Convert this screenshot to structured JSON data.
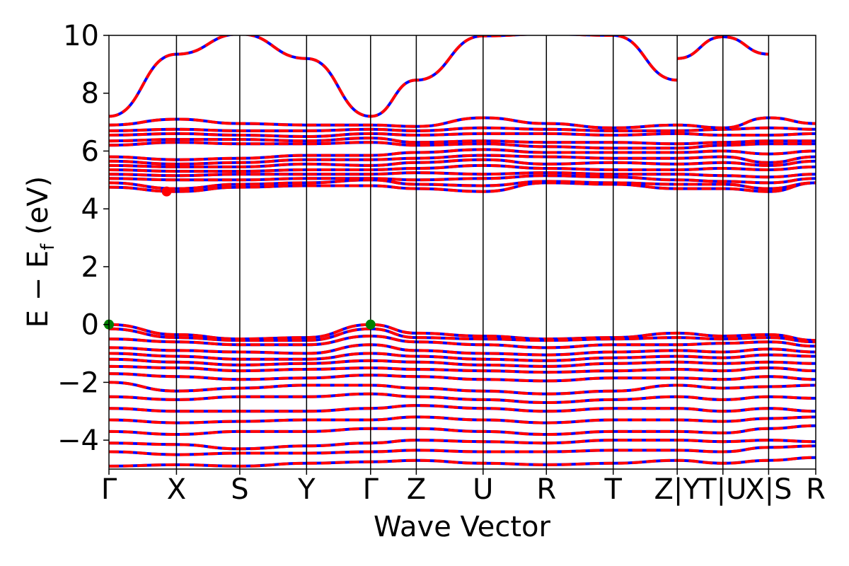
{
  "chart_data": {
    "type": "line",
    "title": "",
    "xlabel": "Wave Vector",
    "ylabel_main": "E − E",
    "ylabel_sub": "f",
    "ylabel_unit": " (eV)",
    "ylim": [
      -5,
      10
    ],
    "yticks": [
      {
        "value": -4,
        "label": "−4"
      },
      {
        "value": -2,
        "label": "−2"
      },
      {
        "value": 0,
        "label": "0"
      },
      {
        "value": 2,
        "label": "2"
      },
      {
        "value": 4,
        "label": "4"
      },
      {
        "value": 6,
        "label": "6"
      },
      {
        "value": 8,
        "label": "8"
      },
      {
        "value": 10,
        "label": "10"
      }
    ],
    "xlim": [
      0,
      10.05
    ],
    "kpoints": [
      {
        "label": "Γ",
        "x": 0.0
      },
      {
        "label": "X",
        "x": 0.96
      },
      {
        "label": "S",
        "x": 1.86
      },
      {
        "label": "Y",
        "x": 2.81
      },
      {
        "label": "Γ",
        "x": 3.72
      },
      {
        "label": "Z",
        "x": 4.37
      },
      {
        "label": "U",
        "x": 5.32
      },
      {
        "label": "R",
        "x": 6.22
      },
      {
        "label": "T",
        "x": 7.17
      },
      {
        "label": "Z|Y",
        "x": 8.08
      },
      {
        "label": "T|U",
        "x": 8.73
      },
      {
        "label": "X|S",
        "x": 9.38
      },
      {
        "label": "R",
        "x": 10.05
      }
    ],
    "colors": {
      "spin_up": "#ff0000",
      "spin_down": "#0000ff",
      "cbm": "#ff0000",
      "vbm": "#008000"
    },
    "cbm": {
      "x": 0.82,
      "y": 4.6
    },
    "vbm": [
      {
        "x": 0.0,
        "y": 0.0
      },
      {
        "x": 3.72,
        "y": 0.0
      }
    ],
    "band_nodes": {
      "x": [
        0.0,
        0.96,
        1.86,
        2.81,
        3.72,
        4.37,
        5.32,
        6.22,
        7.17,
        8.08,
        8.73,
        9.38,
        10.05
      ],
      "conduction_high": [
        [
          7.2,
          9.35,
          10.05,
          9.2,
          7.2,
          8.45,
          9.98,
          10.05,
          10.0,
          8.45,
          null,
          null,
          null
        ],
        [
          null,
          null,
          null,
          null,
          null,
          null,
          null,
          null,
          null,
          9.2,
          9.95,
          9.35,
          null
        ]
      ],
      "conduction": [
        [
          4.75,
          4.6,
          4.75,
          4.8,
          4.8,
          4.7,
          4.6,
          4.9,
          4.85,
          4.7,
          4.7,
          4.6,
          4.9
        ],
        [
          4.9,
          4.7,
          4.85,
          4.9,
          5.0,
          4.85,
          4.8,
          4.95,
          4.9,
          4.85,
          4.85,
          4.7,
          4.9
        ],
        [
          5.05,
          5.0,
          5.0,
          5.05,
          5.05,
          5.0,
          5.05,
          5.15,
          5.1,
          5.0,
          4.95,
          4.9,
          5.05
        ],
        [
          5.2,
          5.15,
          5.2,
          5.2,
          5.2,
          5.25,
          5.2,
          5.25,
          5.2,
          5.2,
          5.15,
          5.1,
          5.2
        ],
        [
          5.35,
          5.3,
          5.3,
          5.35,
          5.35,
          5.4,
          5.5,
          5.4,
          5.35,
          5.35,
          5.4,
          5.35,
          5.45
        ],
        [
          5.5,
          5.45,
          5.45,
          5.55,
          5.5,
          5.6,
          5.7,
          5.55,
          5.6,
          5.55,
          5.6,
          5.5,
          5.65
        ],
        [
          5.65,
          5.55,
          5.6,
          5.7,
          5.7,
          5.75,
          5.85,
          5.8,
          5.75,
          5.75,
          5.8,
          5.6,
          5.8
        ],
        [
          5.8,
          5.7,
          5.75,
          5.85,
          5.85,
          5.95,
          6.05,
          5.95,
          5.95,
          5.95,
          6.0,
          5.9,
          6.0
        ],
        [
          6.2,
          6.3,
          6.25,
          6.25,
          6.3,
          6.2,
          6.25,
          6.15,
          6.1,
          6.1,
          6.2,
          6.25,
          6.25
        ],
        [
          6.35,
          6.4,
          6.4,
          6.35,
          6.45,
          6.3,
          6.35,
          6.3,
          6.3,
          6.25,
          6.3,
          6.35,
          6.35
        ],
        [
          6.55,
          6.6,
          6.55,
          6.5,
          6.6,
          6.55,
          6.6,
          6.6,
          6.55,
          6.6,
          6.55,
          6.55,
          6.6
        ],
        [
          6.7,
          6.75,
          6.7,
          6.7,
          6.75,
          6.7,
          6.8,
          6.75,
          6.7,
          6.7,
          6.75,
          6.8,
          6.75
        ],
        [
          6.9,
          7.1,
          6.95,
          6.9,
          6.9,
          6.85,
          7.15,
          6.95,
          6.8,
          6.9,
          6.8,
          7.15,
          6.95
        ]
      ],
      "valence": [
        [
          0.0,
          -0.35,
          -0.5,
          -0.45,
          0.0,
          -0.3,
          -0.4,
          -0.5,
          -0.45,
          -0.3,
          -0.4,
          -0.35,
          -0.55
        ],
        [
          -0.15,
          -0.45,
          -0.55,
          -0.55,
          -0.15,
          -0.45,
          -0.5,
          -0.55,
          -0.5,
          -0.45,
          -0.5,
          -0.45,
          -0.6
        ],
        [
          -0.5,
          -0.6,
          -0.7,
          -0.7,
          -0.4,
          -0.6,
          -0.7,
          -0.8,
          -0.7,
          -0.7,
          -0.65,
          -0.6,
          -0.75
        ],
        [
          -0.8,
          -0.9,
          -0.95,
          -1.0,
          -0.7,
          -0.9,
          -1.0,
          -1.05,
          -0.95,
          -0.9,
          -0.95,
          -0.85,
          -0.95
        ],
        [
          -1.0,
          -1.1,
          -1.2,
          -1.2,
          -1.0,
          -1.1,
          -1.2,
          -1.25,
          -1.15,
          -1.1,
          -1.15,
          -1.05,
          -1.1
        ],
        [
          -1.2,
          -1.3,
          -1.4,
          -1.35,
          -1.25,
          -1.3,
          -1.4,
          -1.45,
          -1.35,
          -1.3,
          -1.35,
          -1.3,
          -1.35
        ],
        [
          -1.45,
          -1.5,
          -1.6,
          -1.55,
          -1.5,
          -1.55,
          -1.6,
          -1.65,
          -1.6,
          -1.55,
          -1.6,
          -1.5,
          -1.6
        ],
        [
          -1.7,
          -1.8,
          -1.9,
          -1.85,
          -1.75,
          -1.8,
          -1.9,
          -1.95,
          -1.85,
          -1.85,
          -1.9,
          -1.8,
          -1.9
        ],
        [
          -2.0,
          -2.3,
          -2.2,
          -2.1,
          -2.1,
          -2.2,
          -2.3,
          -2.4,
          -2.3,
          -2.1,
          -2.2,
          -2.15,
          -2.1
        ],
        [
          -2.5,
          -2.6,
          -2.5,
          -2.5,
          -2.4,
          -2.5,
          -2.6,
          -2.7,
          -2.6,
          -2.5,
          -2.6,
          -2.5,
          -2.55
        ],
        [
          -2.9,
          -3.0,
          -3.0,
          -3.0,
          -2.9,
          -2.8,
          -2.9,
          -3.0,
          -2.9,
          -2.9,
          -3.0,
          -2.9,
          -3.0
        ],
        [
          -3.3,
          -3.4,
          -3.35,
          -3.3,
          -3.3,
          -3.2,
          -3.3,
          -3.4,
          -3.3,
          -3.3,
          -3.35,
          -3.25,
          -3.2
        ],
        [
          -3.7,
          -3.8,
          -3.7,
          -3.7,
          -3.6,
          -3.6,
          -3.7,
          -3.8,
          -3.7,
          -3.7,
          -3.75,
          -3.6,
          -3.5
        ],
        [
          -4.1,
          -4.15,
          -4.3,
          -4.2,
          -4.1,
          -4.0,
          -4.05,
          -4.1,
          -4.0,
          -4.0,
          -4.05,
          -4.0,
          -4.05
        ],
        [
          -4.4,
          -4.5,
          -4.45,
          -4.45,
          -4.4,
          -4.35,
          -4.4,
          -4.4,
          -4.35,
          -4.35,
          -4.4,
          -4.25,
          -4.2
        ],
        [
          -4.9,
          -4.85,
          -4.9,
          -4.8,
          -4.75,
          -4.7,
          -4.8,
          -4.85,
          -4.8,
          -4.7,
          -4.8,
          -4.7,
          -4.6
        ]
      ]
    }
  }
}
